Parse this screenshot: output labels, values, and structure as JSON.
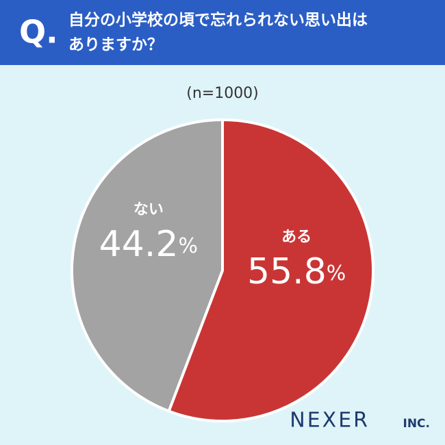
{
  "question_mark": "Q.",
  "chart_data": {
    "type": "pie",
    "title": [
      "自分の小学校の頃で忘れられない思い出は",
      "ありますか？"
    ],
    "subtitle": "(n=1000)",
    "categories": [
      "ある",
      "ない"
    ],
    "values": [
      55.8,
      44.2
    ],
    "value_labels": [
      "55.8%",
      "44.2%"
    ],
    "colors": [
      "#c93535",
      "#a3a3a3"
    ]
  },
  "brand": {
    "name": "NEXER",
    "suffix": "INC."
  }
}
